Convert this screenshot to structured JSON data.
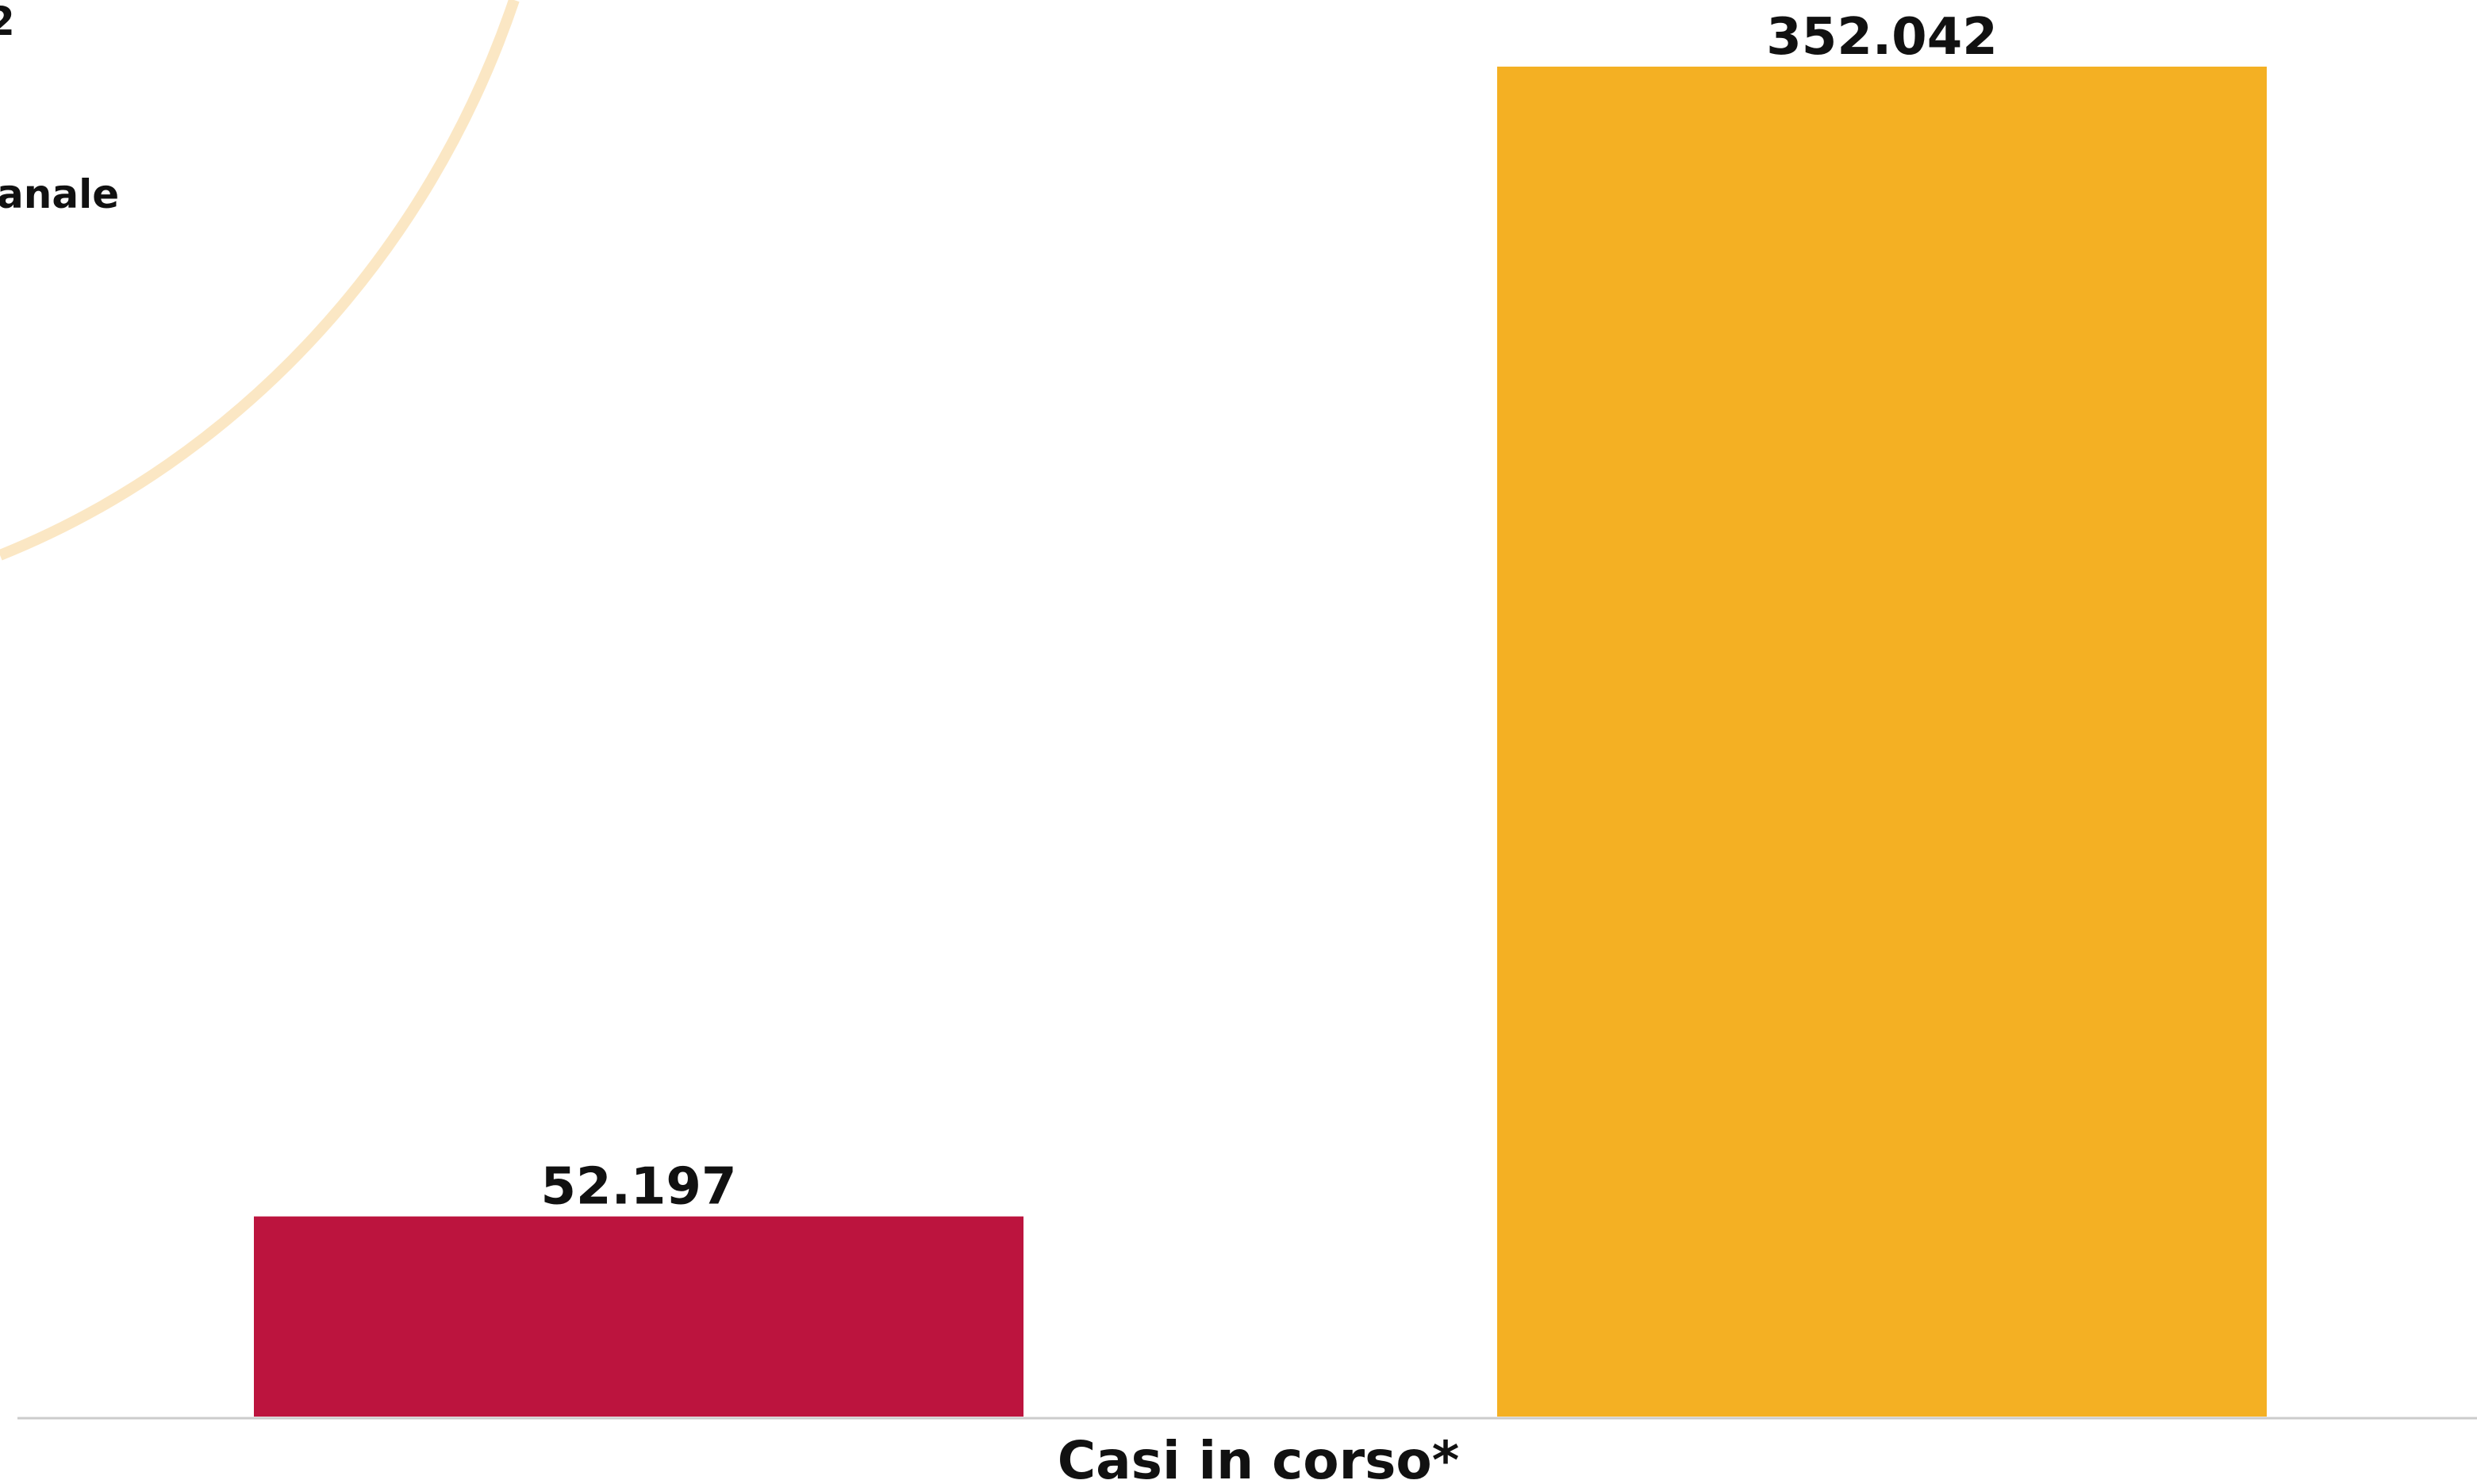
{
  "chart_data": {
    "type": "bar",
    "categories": [
      "Casi in corso*"
    ],
    "series": [
      {
        "values": [
          52197
        ],
        "color": "#BC143E"
      },
      {
        "values": [
          352042
        ],
        "color": "#F4B023"
      }
    ],
    "data_labels": [
      "52.197",
      "352.042"
    ],
    "ylim": [
      0,
      352042
    ],
    "grid": false,
    "axis_color": "#CCCCCC",
    "decoration_color": "#FBE7C4"
  },
  "legend_fragments": {
    "top": "2",
    "middle": "anale"
  }
}
